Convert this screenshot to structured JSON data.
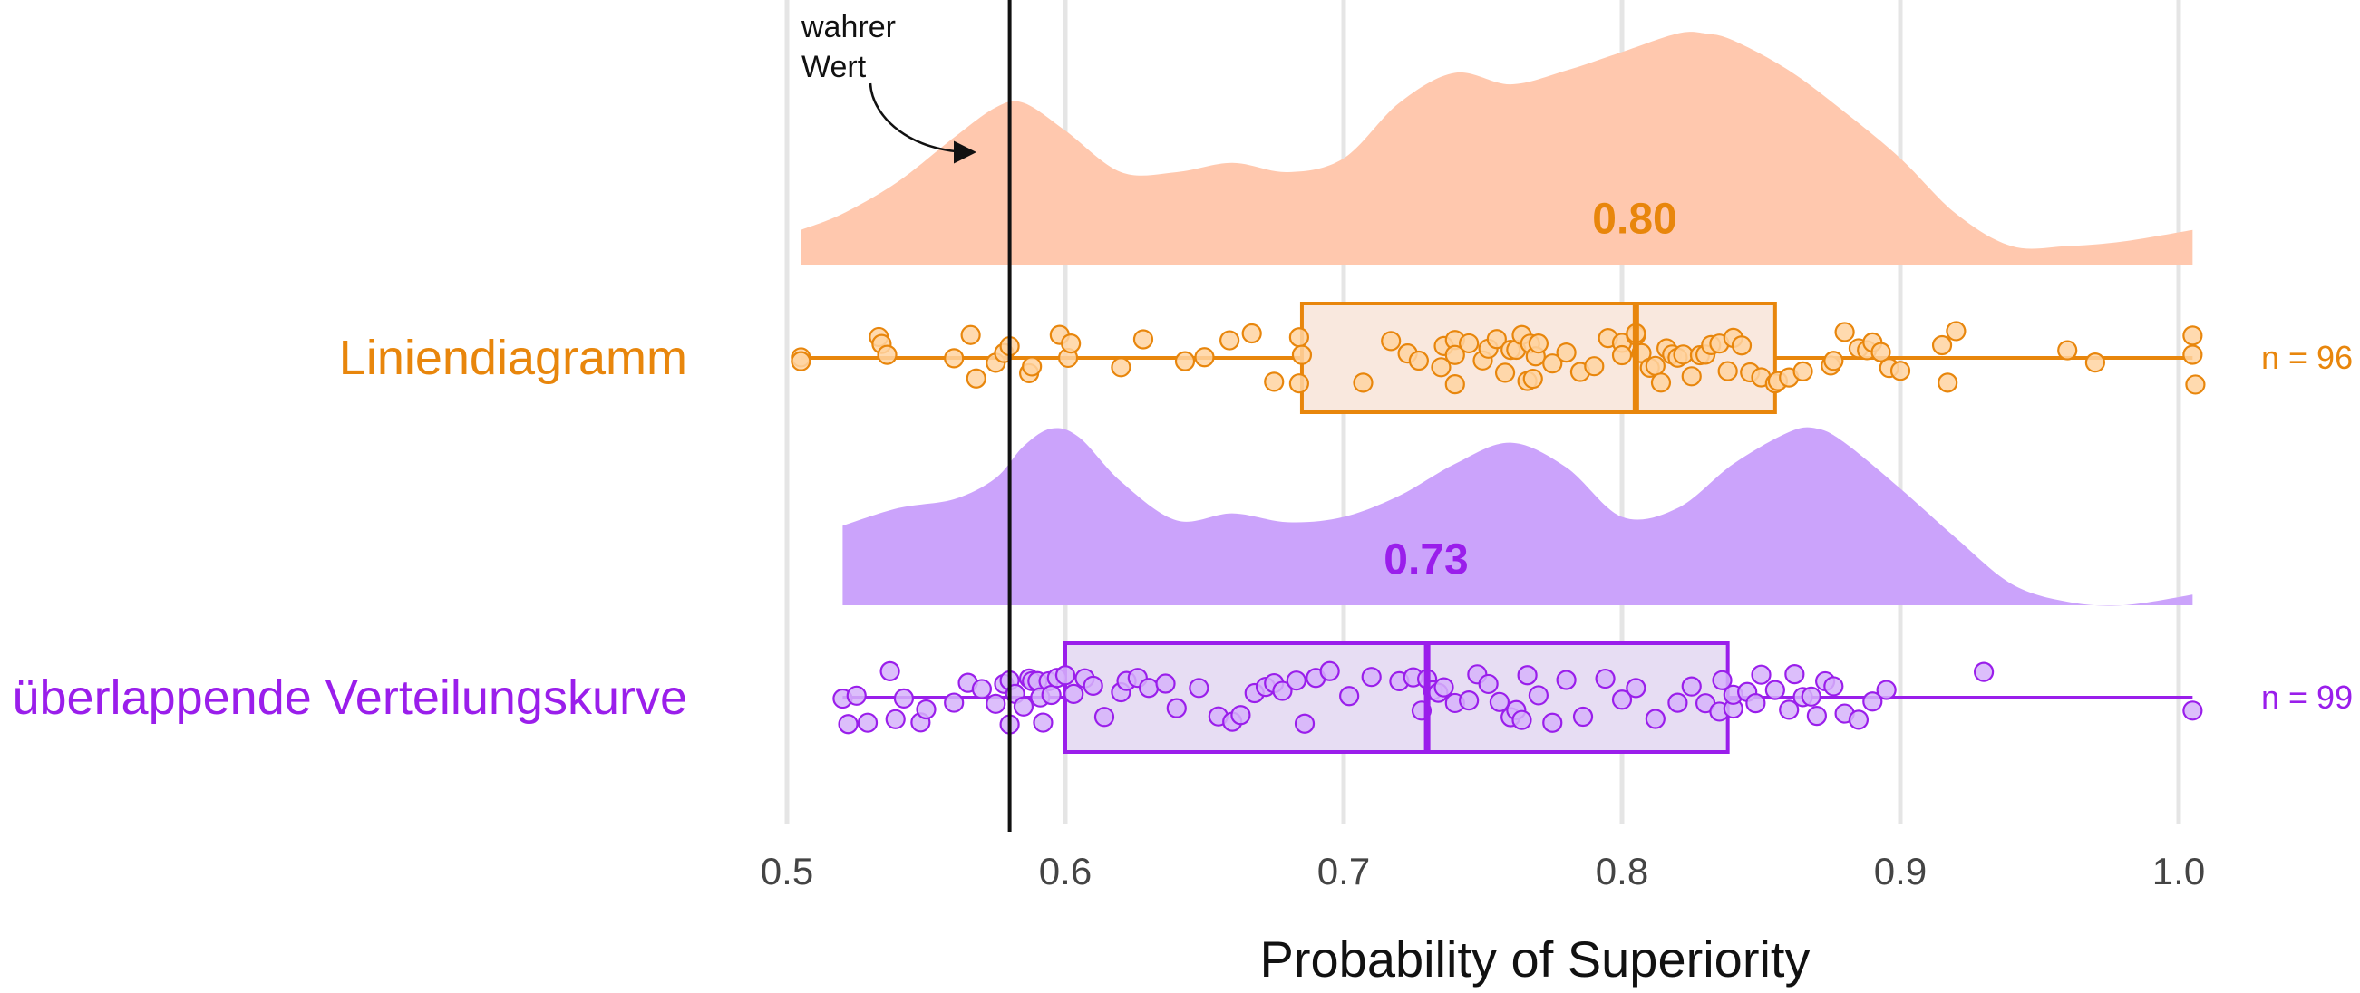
{
  "chart_data": {
    "type": "raincloud",
    "xlabel": "Probability of Superiority",
    "xlim": [
      0.5,
      1.0
    ],
    "x_ticks": [
      "0.5",
      "0.6",
      "0.7",
      "0.8",
      "0.9",
      "1.0"
    ],
    "grid": "vertical major gridlines",
    "reference_line": {
      "x": 0.58,
      "label_line1": "wahrer",
      "label_line2": "Wert"
    },
    "groups": [
      {
        "name": "Liniendiagramm",
        "color": "#E8860C",
        "fill_density": "#FFC8AE",
        "fill_box": "#F9E8DE",
        "point_fill": "#FFD3A1",
        "n_label": "n = 96",
        "median_label": "0.80",
        "box": {
          "whisker_low": 0.505,
          "q1": 0.685,
          "median": 0.805,
          "q3": 0.855,
          "whisker_high": 1.005
        },
        "density": {
          "x": [
            0.505,
            0.52,
            0.54,
            0.56,
            0.575,
            0.585,
            0.6,
            0.62,
            0.64,
            0.66,
            0.68,
            0.7,
            0.72,
            0.74,
            0.76,
            0.78,
            0.8,
            0.82,
            0.83,
            0.84,
            0.86,
            0.88,
            0.9,
            0.92,
            0.94,
            0.96,
            0.98,
            1.005
          ],
          "y": [
            0.15,
            0.22,
            0.36,
            0.55,
            0.68,
            0.7,
            0.58,
            0.4,
            0.4,
            0.44,
            0.4,
            0.46,
            0.7,
            0.83,
            0.78,
            0.84,
            0.92,
            1.0,
            1.0,
            0.97,
            0.84,
            0.66,
            0.46,
            0.22,
            0.08,
            0.08,
            0.1,
            0.15
          ]
        },
        "points": [
          0.505,
          0.505,
          0.533,
          0.534,
          0.536,
          0.56,
          0.566,
          0.568,
          0.575,
          0.578,
          0.58,
          0.587,
          0.588,
          0.598,
          0.601,
          0.602,
          0.62,
          0.628,
          0.643,
          0.65,
          0.659,
          0.667,
          0.675,
          0.684,
          0.684,
          0.685,
          0.707,
          0.717,
          0.723,
          0.727,
          0.735,
          0.736,
          0.74,
          0.74,
          0.74,
          0.745,
          0.75,
          0.752,
          0.755,
          0.758,
          0.76,
          0.762,
          0.764,
          0.766,
          0.767,
          0.768,
          0.769,
          0.77,
          0.775,
          0.78,
          0.785,
          0.79,
          0.795,
          0.8,
          0.8,
          0.805,
          0.805,
          0.807,
          0.81,
          0.812,
          0.814,
          0.816,
          0.818,
          0.82,
          0.822,
          0.825,
          0.828,
          0.83,
          0.832,
          0.835,
          0.838,
          0.84,
          0.843,
          0.846,
          0.85,
          0.855,
          0.856,
          0.86,
          0.865,
          0.875,
          0.876,
          0.88,
          0.885,
          0.888,
          0.89,
          0.893,
          0.896,
          0.9,
          0.915,
          0.917,
          0.92,
          0.96,
          0.97,
          1.005,
          1.005,
          1.006
        ]
      },
      {
        "name": "überlappende Verteilungskurve",
        "color": "#9A1EEB",
        "fill_density": "#CBA3FB",
        "fill_box": "#E7DDF3",
        "point_fill": "#D6B3FA",
        "n_label": "n = 99",
        "median_label": "0.73",
        "box": {
          "whisker_low": 0.52,
          "q1": 0.6,
          "median": 0.73,
          "q3": 0.838,
          "whisker_high": 1.005
        },
        "density": {
          "x": [
            0.52,
            0.54,
            0.56,
            0.575,
            0.585,
            0.595,
            0.605,
            0.62,
            0.64,
            0.66,
            0.68,
            0.7,
            0.72,
            0.74,
            0.76,
            0.78,
            0.8,
            0.82,
            0.84,
            0.86,
            0.87,
            0.88,
            0.9,
            0.92,
            0.94,
            0.96,
            0.98,
            1.005
          ],
          "y": [
            0.45,
            0.55,
            0.6,
            0.72,
            0.9,
            1.0,
            0.95,
            0.7,
            0.48,
            0.52,
            0.47,
            0.5,
            0.62,
            0.8,
            0.92,
            0.78,
            0.5,
            0.55,
            0.8,
            0.98,
            1.0,
            0.92,
            0.66,
            0.38,
            0.12,
            0.02,
            0.0,
            0.06
          ]
        },
        "points": [
          0.52,
          0.522,
          0.525,
          0.529,
          0.537,
          0.539,
          0.542,
          0.548,
          0.55,
          0.56,
          0.565,
          0.57,
          0.575,
          0.578,
          0.58,
          0.58,
          0.582,
          0.585,
          0.587,
          0.588,
          0.59,
          0.591,
          0.592,
          0.594,
          0.595,
          0.597,
          0.6,
          0.603,
          0.607,
          0.61,
          0.614,
          0.62,
          0.622,
          0.626,
          0.63,
          0.636,
          0.64,
          0.648,
          0.655,
          0.66,
          0.663,
          0.668,
          0.672,
          0.675,
          0.678,
          0.683,
          0.686,
          0.69,
          0.695,
          0.702,
          0.71,
          0.72,
          0.725,
          0.728,
          0.73,
          0.732,
          0.734,
          0.736,
          0.74,
          0.745,
          0.748,
          0.752,
          0.756,
          0.76,
          0.762,
          0.764,
          0.766,
          0.77,
          0.775,
          0.78,
          0.786,
          0.794,
          0.8,
          0.805,
          0.812,
          0.82,
          0.825,
          0.83,
          0.835,
          0.836,
          0.84,
          0.84,
          0.845,
          0.848,
          0.85,
          0.855,
          0.86,
          0.862,
          0.865,
          0.868,
          0.87,
          0.873,
          0.876,
          0.88,
          0.885,
          0.89,
          0.895,
          0.93,
          1.005
        ]
      }
    ]
  }
}
